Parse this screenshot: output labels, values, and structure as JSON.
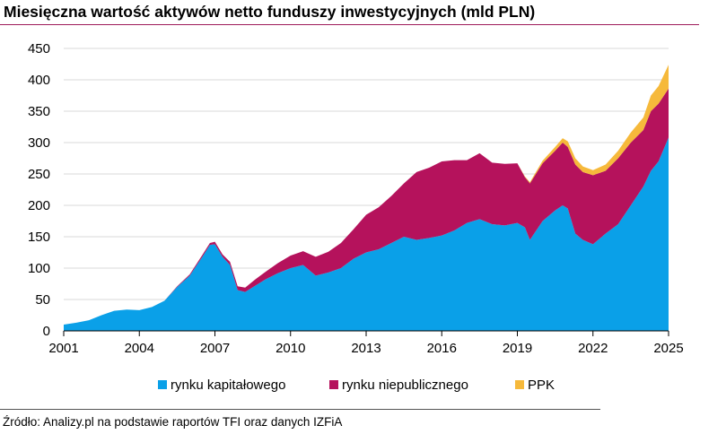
{
  "title": "Miesięczna wartość aktywów netto funduszy inwestycyjnych (mld PLN)",
  "source": "Źródło: Analizy.pl na podstawie raportów TFI oraz danych IZFiA",
  "colors": {
    "rynku_kapitalowego": "#0aa0e8",
    "rynku_niepublicznego": "#b5125c",
    "PPK": "#f6b93b",
    "grid": "#d9d9d9",
    "title_rule": "#9e1b5a"
  },
  "chart_data": {
    "type": "area",
    "stacked": true,
    "title": "Miesięczna wartość aktywów netto funduszy inwestycyjnych (mld PLN)",
    "xlabel": "",
    "ylabel": "",
    "xlim": [
      2001,
      2025
    ],
    "ylim": [
      0,
      450
    ],
    "grid": true,
    "legend_position": "bottom",
    "x_ticks": [
      "2001",
      "2004",
      "2007",
      "2010",
      "2013",
      "2016",
      "2019",
      "2022",
      "2025"
    ],
    "y_ticks": [
      "0",
      "50",
      "100",
      "150",
      "200",
      "250",
      "300",
      "350",
      "400",
      "450"
    ],
    "x": [
      2001.0,
      2001.5,
      2002.0,
      2002.5,
      2003.0,
      2003.5,
      2004.0,
      2004.5,
      2005.0,
      2005.5,
      2006.0,
      2006.5,
      2006.8,
      2007.0,
      2007.3,
      2007.6,
      2007.9,
      2008.2,
      2008.6,
      2009.0,
      2009.5,
      2010.0,
      2010.5,
      2011.0,
      2011.5,
      2012.0,
      2012.5,
      2013.0,
      2013.5,
      2014.0,
      2014.5,
      2015.0,
      2015.5,
      2016.0,
      2016.5,
      2017.0,
      2017.5,
      2018.0,
      2018.5,
      2019.0,
      2019.3,
      2019.5,
      2020.0,
      2020.5,
      2020.8,
      2021.0,
      2021.3,
      2021.6,
      2022.0,
      2022.5,
      2023.0,
      2023.5,
      2024.0,
      2024.3,
      2024.6,
      2025.0
    ],
    "series": [
      {
        "name": "rynku kapitałowego",
        "values": [
          10,
          13,
          17,
          25,
          32,
          34,
          33,
          38,
          48,
          70,
          88,
          118,
          137,
          138,
          118,
          105,
          65,
          62,
          72,
          82,
          92,
          100,
          105,
          88,
          93,
          100,
          115,
          125,
          130,
          140,
          150,
          145,
          148,
          152,
          160,
          172,
          178,
          170,
          168,
          172,
          165,
          145,
          175,
          192,
          200,
          195,
          155,
          145,
          138,
          155,
          170,
          200,
          230,
          255,
          270,
          308
        ]
      },
      {
        "name": "rynku niepublicznego",
        "values": [
          0,
          0,
          0,
          0,
          0,
          0,
          0,
          0,
          0,
          1,
          2,
          3,
          3,
          4,
          4,
          5,
          6,
          7,
          10,
          12,
          16,
          20,
          22,
          30,
          33,
          40,
          47,
          60,
          67,
          75,
          85,
          108,
          112,
          118,
          112,
          100,
          105,
          98,
          98,
          95,
          80,
          90,
          92,
          95,
          100,
          98,
          110,
          108,
          110,
          100,
          105,
          100,
          90,
          95,
          92,
          78
        ]
      },
      {
        "name": "PPK",
        "values": [
          0,
          0,
          0,
          0,
          0,
          0,
          0,
          0,
          0,
          0,
          0,
          0,
          0,
          0,
          0,
          0,
          0,
          0,
          0,
          0,
          0,
          0,
          0,
          0,
          0,
          0,
          0,
          0,
          0,
          0,
          0,
          0,
          0,
          0,
          0,
          0,
          0,
          0,
          0,
          0,
          1,
          2,
          4,
          6,
          7,
          9,
          10,
          9,
          8,
          10,
          12,
          16,
          20,
          25,
          28,
          38
        ]
      }
    ]
  }
}
